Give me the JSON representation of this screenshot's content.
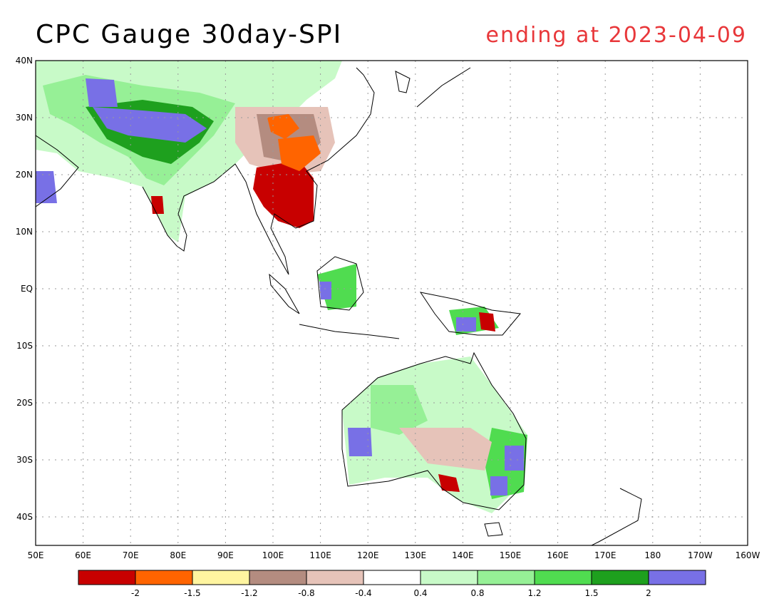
{
  "header": {
    "title": "CPC Gauge 30day-SPI",
    "subtitle": "ending at 2023-04-09"
  },
  "map": {
    "lon_range": [
      50,
      200
    ],
    "lat_range": [
      -45,
      40
    ],
    "lat_labels": [
      "40N",
      "30N",
      "20N",
      "10N",
      "EQ",
      "10S",
      "20S",
      "30S",
      "40S"
    ],
    "lon_labels": [
      "50E",
      "60E",
      "70E",
      "80E",
      "90E",
      "100E",
      "110E",
      "120E",
      "130E",
      "140E",
      "150E",
      "160E",
      "170E",
      "180",
      "170W",
      "160W"
    ]
  },
  "legend": {
    "colors": [
      "#c80000",
      "#ff6400",
      "#fff5a0",
      "#b48c80",
      "#e6c3b9",
      "#ffffff",
      "#c8fac8",
      "#96f096",
      "#50dc50",
      "#1ea01e",
      "#7870e6"
    ],
    "breaks": [
      "-2",
      "-1.5",
      "-1.2",
      "-0.8",
      "-0.4",
      "0.4",
      "0.8",
      "1.2",
      "1.5",
      "2"
    ]
  },
  "colors": {
    "title": "#000000",
    "subtitle": "#e8373a",
    "grid": "#9a9a9a",
    "coast": "#000000"
  }
}
